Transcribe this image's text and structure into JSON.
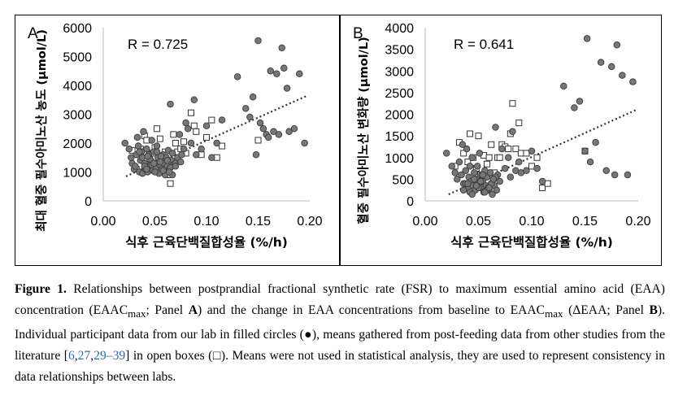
{
  "panels": [
    {
      "id": "A",
      "letter": "A",
      "r_label": "R = 0.725",
      "xlabel": "식후 근육단백질합성율 (%/h)",
      "ylabel": "최대 혈중 필수아미노산 농도 (μmol/L)"
    },
    {
      "id": "B",
      "letter": "B",
      "r_label": "R = 0.641",
      "xlabel": "식후 근육단백질합성율 (%/h)",
      "ylabel": "혈중 필수아미노산 변화량 (μmol/L)"
    }
  ],
  "caption": {
    "label": "Figure 1.",
    "t1": " Relationships between postprandial fractional synthetic rate (FSR) to maximum essential amino acid (EAA) concentration (EAAC",
    "sub1": "max",
    "t2": "; Panel ",
    "pa": "A",
    "t3": ") and the change in EAA concentrations from baseline to EAAC",
    "sub2": "max",
    "t4": " (ΔEAA; Panel ",
    "pb": "B",
    "t5": "). Individual participant data from our lab in filled circles (●), means gathered from post-feeding data from other studies from the literature [",
    "r1": "6",
    "c1": ",",
    "r2": "27",
    "c2": ",",
    "r3": "29–39",
    "t6": "] in open boxes (□). Means were not used in statistical analysis, they are used to represent consistency in data relationships between labs."
  },
  "colors": {
    "circle_fill": "#777777",
    "circle_stroke": "#3a3a3a",
    "box_fill": "#ffffff",
    "box_stroke": "#333333",
    "trend": "#333333"
  },
  "chart_data": [
    {
      "type": "scatter",
      "panel": "A",
      "xlabel": "식후 근육단백질합성율 (%/h)",
      "ylabel": "최대 혈중 필수아미노산 농도 (μmol/L)",
      "xlim": [
        0.0,
        0.2
      ],
      "ylim": [
        0,
        6000
      ],
      "xticks": [
        "0.00",
        "0.05",
        "0.10",
        "0.15",
        "0.20"
      ],
      "yticks": [
        "0",
        "1000",
        "2000",
        "3000",
        "4000",
        "5000",
        "6000"
      ],
      "annotation": "R = 0.725",
      "trendline": {
        "x": [
          0.022,
          0.198
        ],
        "y": [
          850,
          3650
        ],
        "style": "dotted"
      },
      "series": [
        {
          "marker": "filled-circle",
          "x": [
            0.021,
            0.025,
            0.027,
            0.028,
            0.03,
            0.031,
            0.032,
            0.033,
            0.034,
            0.035,
            0.036,
            0.037,
            0.038,
            0.038,
            0.039,
            0.04,
            0.041,
            0.042,
            0.043,
            0.044,
            0.045,
            0.046,
            0.047,
            0.048,
            0.049,
            0.05,
            0.051,
            0.052,
            0.053,
            0.054,
            0.055,
            0.056,
            0.057,
            0.058,
            0.059,
            0.06,
            0.061,
            0.062,
            0.063,
            0.064,
            0.065,
            0.066,
            0.067,
            0.068,
            0.07,
            0.072,
            0.074,
            0.076,
            0.078,
            0.08,
            0.082,
            0.085,
            0.088,
            0.09,
            0.095,
            0.1,
            0.105,
            0.11,
            0.115,
            0.13,
            0.138,
            0.142,
            0.145,
            0.148,
            0.15,
            0.152,
            0.155,
            0.158,
            0.16,
            0.162,
            0.165,
            0.168,
            0.17,
            0.173,
            0.175,
            0.178,
            0.18,
            0.185,
            0.19,
            0.195,
            0.04,
            0.045,
            0.05,
            0.055,
            0.06,
            0.065,
            0.043,
            0.047,
            0.052,
            0.058,
            0.062,
            0.067,
            0.035,
            0.042,
            0.049,
            0.056,
            0.064,
            0.07,
            0.075
          ],
          "y": [
            2000,
            1800,
            1500,
            1300,
            1100,
            1200,
            1600,
            2200,
            1900,
            1000,
            1400,
            1700,
            1500,
            950,
            2400,
            1300,
            1100,
            1800,
            1000,
            1600,
            1200,
            1400,
            2100,
            1050,
            1700,
            1300,
            1150,
            1900,
            1500,
            950,
            1250,
            1400,
            1100,
            1600,
            1300,
            1000,
            1500,
            1200,
            1750,
            1100,
            3350,
            1400,
            1650,
            1250,
            1300,
            1500,
            2300,
            1600,
            1800,
            2700,
            2500,
            2000,
            3500,
            1600,
            1800,
            2600,
            1500,
            2000,
            2800,
            4300,
            3200,
            2900,
            3600,
            1600,
            5550,
            2700,
            2500,
            2300,
            2200,
            4500,
            2400,
            4400,
            2300,
            5300,
            4600,
            3900,
            2400,
            2500,
            4400,
            2000,
            1200,
            1450,
            1000,
            1350,
            900,
            1150,
            1550,
            1250,
            1700,
            1050,
            1400,
            900,
            1700,
            1100,
            1300,
            1550,
            1000,
            1200,
            1350
          ]
        },
        {
          "marker": "open-box",
          "x": [
            0.028,
            0.032,
            0.036,
            0.04,
            0.042,
            0.045,
            0.048,
            0.05,
            0.052,
            0.055,
            0.058,
            0.06,
            0.062,
            0.065,
            0.068,
            0.07,
            0.072,
            0.075,
            0.078,
            0.08,
            0.085,
            0.088,
            0.09,
            0.095,
            0.1,
            0.105,
            0.11,
            0.115,
            0.15
          ],
          "y": [
            1750,
            1100,
            1800,
            2250,
            2100,
            1600,
            1650,
            1850,
            2500,
            2150,
            1500,
            1700,
            900,
            600,
            2300,
            2000,
            1700,
            1800,
            2050,
            1650,
            3050,
            2600,
            2400,
            1600,
            2200,
            2800,
            1500,
            1900,
            2100
          ]
        }
      ]
    },
    {
      "type": "scatter",
      "panel": "B",
      "xlabel": "식후 근육단백질합성율 (%/h)",
      "ylabel": "혈중 필수아미노산 변화량 (μmol/L)",
      "xlim": [
        0.0,
        0.2
      ],
      "ylim": [
        0,
        4000
      ],
      "xticks": [
        "0.00",
        "0.05",
        "0.10",
        "0.15",
        "0.20"
      ],
      "yticks": [
        "0",
        "500",
        "1000",
        "1500",
        "2000",
        "2500",
        "3000",
        "3500",
        "4000"
      ],
      "annotation": "R = 0.641",
      "trendline": {
        "x": [
          0.022,
          0.198
        ],
        "y": [
          150,
          2100
        ],
        "style": "dotted"
      },
      "series": [
        {
          "marker": "filled-circle",
          "x": [
            0.02,
            0.025,
            0.028,
            0.03,
            0.032,
            0.034,
            0.035,
            0.036,
            0.038,
            0.039,
            0.04,
            0.041,
            0.042,
            0.043,
            0.044,
            0.045,
            0.046,
            0.047,
            0.048,
            0.049,
            0.05,
            0.051,
            0.052,
            0.053,
            0.054,
            0.055,
            0.056,
            0.057,
            0.058,
            0.059,
            0.06,
            0.061,
            0.062,
            0.063,
            0.064,
            0.065,
            0.066,
            0.067,
            0.068,
            0.07,
            0.072,
            0.075,
            0.078,
            0.08,
            0.082,
            0.085,
            0.088,
            0.09,
            0.095,
            0.1,
            0.105,
            0.11,
            0.13,
            0.14,
            0.145,
            0.15,
            0.152,
            0.155,
            0.16,
            0.165,
            0.17,
            0.175,
            0.178,
            0.18,
            0.185,
            0.19,
            0.195,
            0.038,
            0.042,
            0.046,
            0.05,
            0.054,
            0.058,
            0.062,
            0.066,
            0.044,
            0.048,
            0.052,
            0.056,
            0.06,
            0.064,
            0.036,
            0.04
          ],
          "y": [
            1100,
            800,
            650,
            500,
            900,
            600,
            1300,
            400,
            700,
            1200,
            300,
            550,
            800,
            450,
            1000,
            350,
            650,
            250,
            500,
            800,
            400,
            1100,
            300,
            600,
            450,
            200,
            700,
            350,
            550,
            300,
            250,
            650,
            400,
            150,
            500,
            350,
            1700,
            250,
            600,
            450,
            1200,
            750,
            1000,
            550,
            1600,
            700,
            900,
            650,
            700,
            1150,
            750,
            450,
            2650,
            2150,
            2300,
            1150,
            3750,
            900,
            1350,
            3200,
            700,
            3100,
            600,
            3600,
            2900,
            600,
            2750,
            400,
            200,
            500,
            300,
            600,
            250,
            400,
            550,
            150,
            350,
            450,
            200,
            300,
            500,
            250,
            400
          ]
        },
        {
          "marker": "open-box",
          "x": [
            0.028,
            0.032,
            0.036,
            0.04,
            0.042,
            0.045,
            0.048,
            0.05,
            0.052,
            0.055,
            0.058,
            0.06,
            0.062,
            0.065,
            0.068,
            0.07,
            0.072,
            0.075,
            0.078,
            0.08,
            0.082,
            0.085,
            0.088,
            0.09,
            0.095,
            0.1,
            0.105,
            0.11,
            0.115,
            0.15
          ],
          "y": [
            800,
            1350,
            1100,
            900,
            1550,
            1000,
            750,
            1500,
            600,
            1050,
            850,
            1000,
            1300,
            650,
            1000,
            1000,
            1300,
            1250,
            1200,
            1550,
            2250,
            1200,
            1800,
            1100,
            1100,
            800,
            1000,
            300,
            400,
            1150
          ]
        }
      ]
    }
  ]
}
